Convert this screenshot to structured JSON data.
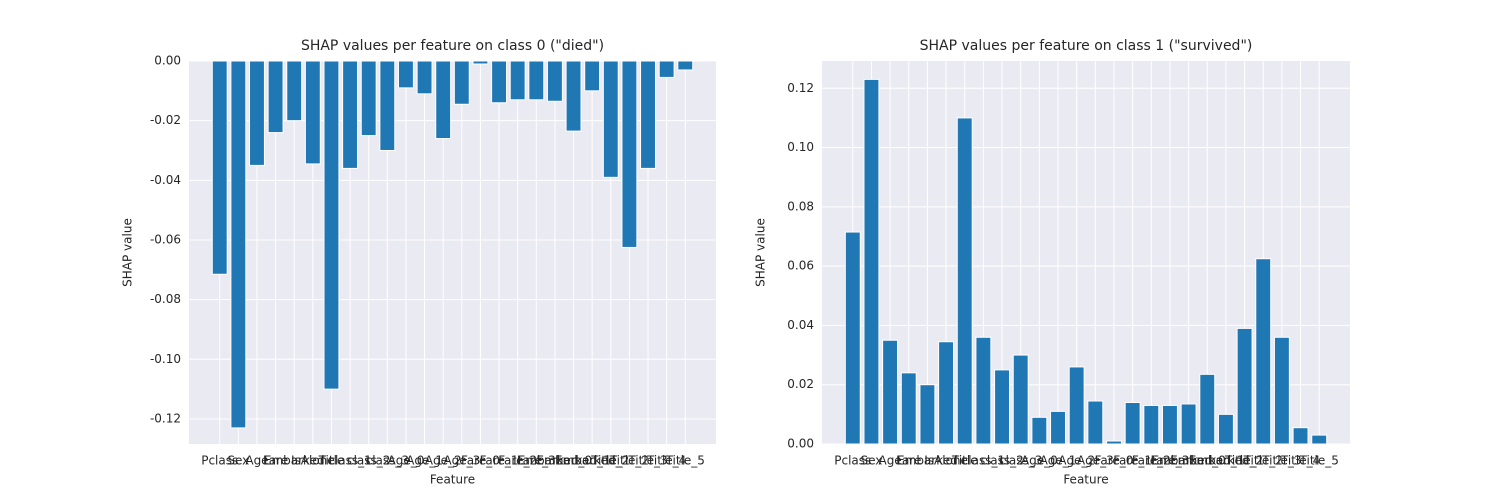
{
  "chart_data": [
    {
      "type": "bar",
      "title": "SHAP values per feature on class 0 (\"died\")",
      "xlabel": "Feature",
      "ylabel": "SHAP value",
      "color": "#1f77b4",
      "grid": true,
      "categories": [
        "Pclass",
        "Sex",
        "Age",
        "Fare",
        "Embarked",
        "IsAlone",
        "Title",
        "class_1",
        "class_2",
        "class_3",
        "Age_0",
        "Age_1",
        "Age_2",
        "Age_3",
        "Fare_0",
        "Fare_1",
        "Fare_2",
        "Fare_3",
        "Embarked_0",
        "Embarked_1",
        "Embarked_2",
        "Title_1",
        "Title_2",
        "Title_3",
        "Title_4",
        "Title_5"
      ],
      "values": [
        -0.0715,
        -0.123,
        -0.035,
        -0.024,
        -0.02,
        -0.0345,
        -0.11,
        -0.036,
        -0.025,
        -0.03,
        -0.009,
        -0.011,
        -0.026,
        -0.0145,
        -0.001,
        -0.014,
        -0.013,
        -0.013,
        -0.0135,
        -0.0235,
        -0.01,
        -0.039,
        -0.0625,
        -0.036,
        -0.0055,
        -0.003
      ],
      "ylim": [
        -0.1284,
        0
      ],
      "yticks": [
        {
          "value": 0,
          "label": "0.00"
        },
        {
          "value": -0.02,
          "label": "-0.02"
        },
        {
          "value": -0.04,
          "label": "-0.04"
        },
        {
          "value": -0.06,
          "label": "-0.06"
        },
        {
          "value": -0.08,
          "label": "-0.08"
        },
        {
          "value": -0.1,
          "label": "-0.10"
        },
        {
          "value": -0.12,
          "label": "-0.12"
        }
      ]
    },
    {
      "type": "bar",
      "title": "SHAP values per feature on class 1 (\"survived\")",
      "xlabel": "Feature",
      "ylabel": "SHAP value",
      "color": "#1f77b4",
      "grid": true,
      "categories": [
        "Pclass",
        "Sex",
        "Age",
        "Fare",
        "Embarked",
        "IsAlone",
        "Title",
        "class_1",
        "class_2",
        "class_3",
        "Age_0",
        "Age_1",
        "Age_2",
        "Age_3",
        "Fare_0",
        "Fare_1",
        "Fare_2",
        "Fare_3",
        "Embarked_0",
        "Embarked_1",
        "Embarked_2",
        "Title_1",
        "Title_2",
        "Title_3",
        "Title_4",
        "Title_5"
      ],
      "values": [
        0.0715,
        0.123,
        0.035,
        0.024,
        0.02,
        0.0345,
        0.11,
        0.036,
        0.025,
        0.03,
        0.009,
        0.011,
        0.026,
        0.0145,
        0.001,
        0.014,
        0.013,
        0.013,
        0.0135,
        0.0235,
        0.01,
        0.039,
        0.0625,
        0.036,
        0.0055,
        0.003
      ],
      "ylim": [
        0,
        0.1292
      ],
      "yticks": [
        {
          "value": 0,
          "label": "0.00"
        },
        {
          "value": 0.02,
          "label": "0.02"
        },
        {
          "value": 0.04,
          "label": "0.04"
        },
        {
          "value": 0.06,
          "label": "0.06"
        },
        {
          "value": 0.08,
          "label": "0.08"
        },
        {
          "value": 0.1,
          "label": "0.10"
        },
        {
          "value": 0.12,
          "label": "0.12"
        }
      ]
    }
  ]
}
